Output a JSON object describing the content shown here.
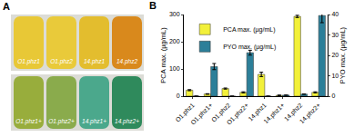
{
  "panel_a": {
    "label": "A",
    "rows": [
      [
        {
          "label": "O1.phz1",
          "color": "#e8c836"
        },
        {
          "label": "O1.phz2",
          "color": "#e9ca3a"
        },
        {
          "label": "14.phz1",
          "color": "#e3bd2e"
        },
        {
          "label": "14.phz2",
          "color": "#d9891c"
        }
      ],
      [
        {
          "label": "O1.phz1+",
          "color": "#98ad3c"
        },
        {
          "label": "O1.phz2+",
          "color": "#8aab4c"
        },
        {
          "label": "14.phz1+",
          "color": "#4ba88c"
        },
        {
          "label": "14.phz2+",
          "color": "#2f8a5c"
        }
      ]
    ]
  },
  "chart_data": {
    "type": "bar",
    "panel_label": "B",
    "categories": [
      "O1.phz1",
      "O1.phz1+",
      "O1.phz2",
      "O1.phz2+",
      "14.phz1",
      "14.phz1+",
      "14.phz2",
      "14.phz2+"
    ],
    "series": [
      {
        "name": "PCA max. (µg/mL)",
        "color": "#f2f03a",
        "values": [
          22,
          8,
          28,
          14,
          80,
          3,
          293,
          14
        ],
        "error": [
          2,
          1,
          2,
          2,
          8,
          1,
          4,
          2
        ]
      },
      {
        "name": "PYO max. (µg/mL)",
        "color": "#2c7f99",
        "axis": "y2",
        "values": [
          0,
          14.5,
          0,
          21.3,
          0,
          0.5,
          1,
          39.5
        ],
        "error": [
          0,
          1.5,
          0,
          1.2,
          0,
          0,
          0,
          3.5
        ]
      }
    ],
    "y_label": "PCA max. (µg/mL)",
    "y2_label": "PYO max. (µg/mL)",
    "ylim": [
      0,
      300
    ],
    "yticks": [
      0,
      100,
      200,
      300
    ],
    "y2lim": [
      0,
      40
    ],
    "y2ticks": [
      0,
      10,
      20,
      30,
      40
    ],
    "grid": false,
    "legend": "top-left"
  }
}
